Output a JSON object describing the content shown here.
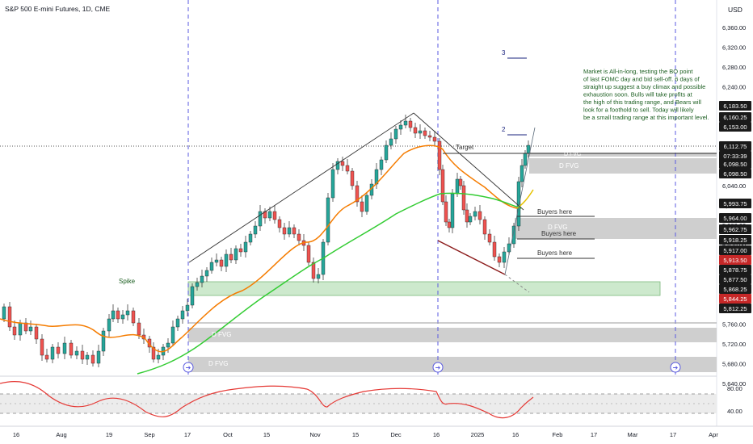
{
  "header": {
    "title": "S&P 500 E-mini Futures, 1D, CME",
    "currency": "USD"
  },
  "chart_data": {
    "type": "candlestick",
    "title": "S&P 500 E-mini Futures, 1D, CME",
    "price_axis": {
      "ticks": [
        "6,360.00",
        "6,320.00",
        "6,280.00",
        "6,240.00",
        "6,200.00",
        "6,160.00",
        "6,120.00",
        "6,080.00",
        "6,040.00",
        "6,000.00",
        "5,960.00",
        "5,920.00",
        "5,880.00",
        "5,840.00",
        "5,800.00",
        "5,760.00",
        "5,720.00",
        "5,680.00",
        "5,640.00"
      ]
    },
    "time_axis": {
      "ticks": [
        "16",
        "Aug",
        "19",
        "Sep",
        "17",
        "Oct",
        "15",
        "Nov",
        "15",
        "Dec",
        "16",
        "2025",
        "16",
        "Feb",
        "17",
        "Mar",
        "17",
        "Apr"
      ]
    },
    "price_labels": [
      {
        "text": "6,183.50",
        "bg": "#1a1a1a",
        "fg": "#ffffff"
      },
      {
        "text": "6,160.25",
        "bg": "#1a1a1a",
        "fg": "#ffffff"
      },
      {
        "text": "6,153.00",
        "bg": "#1a1a1a",
        "fg": "#ffffff"
      },
      {
        "text": "6,112.75",
        "bg": "#1a1a1a",
        "fg": "#ffffff"
      },
      {
        "text": "07:33:39",
        "bg": "#1a1a1a",
        "fg": "#ffffff"
      },
      {
        "text": "6,098.50",
        "bg": "#1a1a1a",
        "fg": "#ffffff"
      },
      {
        "text": "6,098.50",
        "bg": "#1a1a1a",
        "fg": "#ffffff"
      },
      {
        "text": "5,993.75",
        "bg": "#1a1a1a",
        "fg": "#ffffff"
      },
      {
        "text": "5,964.00",
        "bg": "#1a1a1a",
        "fg": "#ffffff"
      },
      {
        "text": "5,962.75",
        "bg": "#1a1a1a",
        "fg": "#ffffff"
      },
      {
        "text": "5,918.25",
        "bg": "#1a1a1a",
        "fg": "#ffffff"
      },
      {
        "text": "5,917.00",
        "bg": "#1a1a1a",
        "fg": "#ffffff"
      },
      {
        "text": "5,913.50",
        "bg": "#c62828",
        "fg": "#ffffff"
      },
      {
        "text": "5,878.75",
        "bg": "#1a1a1a",
        "fg": "#ffffff"
      },
      {
        "text": "5,877.50",
        "bg": "#1a1a1a",
        "fg": "#ffffff"
      },
      {
        "text": "5,868.25",
        "bg": "#1a1a1a",
        "fg": "#ffffff"
      },
      {
        "text": "5,844.25",
        "bg": "#c62828",
        "fg": "#ffffff"
      },
      {
        "text": "5,812.25",
        "bg": "#1a1a1a",
        "fg": "#ffffff"
      }
    ],
    "annotations": {
      "commentary": [
        "Market is All-in-long, testing the BO point",
        "of last FOMC day and bid sell-off.  6 days of",
        "straight up suggest a buy climax and possible",
        "exhaustion soon.  Bulls will take profits at",
        "the high of this trading range, and Bears will",
        "look for a foothold to sell.  Today will likely",
        "be a small trading range at this important level."
      ],
      "target": "Target",
      "spike": "Spike",
      "buyers_1": "Buyers here",
      "buyers_2": "Buyers here",
      "buyers_3": "Buyers here",
      "fvg_1": "D FVG",
      "fvg_2": "D FVG",
      "fvg_3": "D FVG",
      "fvg_4": "D FVG",
      "fvg_5": "D FVG",
      "leg_2": "2",
      "leg_3": "3"
    },
    "oscillator": {
      "levels": [
        "80.00",
        "40.00"
      ]
    },
    "colors": {
      "bull_candle": "#26a69a",
      "bear_candle": "#ef5350",
      "ema_fast": "#f57c00",
      "ema_slow": "#33cc33",
      "oscillator": "#e53935",
      "event_line": "#5a5ae0",
      "fvg_zone": "#cfcfcf",
      "green_zone": "#cde9cd"
    }
  }
}
